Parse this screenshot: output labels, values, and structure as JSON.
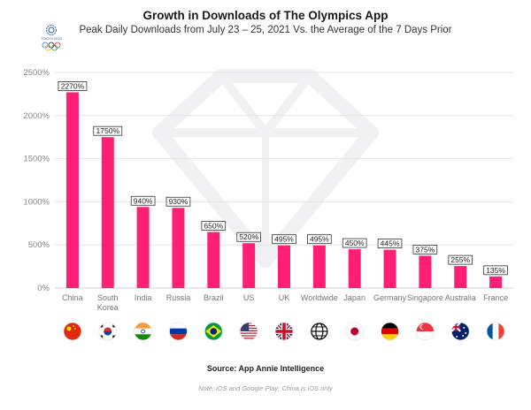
{
  "header": {
    "title": "Growth in Downloads of The Olympics App",
    "subtitle": "Peak Daily Downloads from July 23 – 25, 2021 Vs. the Average of the 7 Days Prior",
    "logo_text": "TOKYO 2020"
  },
  "footer": {
    "source": "Source: App Annie Intelligence",
    "note": "Note: iOS and Google Play; China is iOS only"
  },
  "chart_data": {
    "type": "bar",
    "title": "Growth in Downloads of The Olympics App",
    "subtitle": "Peak Daily Downloads from July 23 – 25, 2021 Vs. the Average of the 7 Days Prior",
    "categories": [
      "China",
      "South Korea",
      "India",
      "Russia",
      "Brazil",
      "US",
      "UK",
      "Worldwide",
      "Japan",
      "Germany",
      "Singapore",
      "Australia",
      "France"
    ],
    "category_lines": [
      [
        "China"
      ],
      [
        "South",
        "Korea"
      ],
      [
        "India"
      ],
      [
        "Russia"
      ],
      [
        "Brazil"
      ],
      [
        "US"
      ],
      [
        "UK"
      ],
      [
        "Worldwide"
      ],
      [
        "Japan"
      ],
      [
        "Germany"
      ],
      [
        "Singapore"
      ],
      [
        "Australia"
      ],
      [
        "France"
      ]
    ],
    "values": [
      2270,
      1750,
      940,
      930,
      650,
      520,
      495,
      495,
      450,
      445,
      375,
      255,
      135
    ],
    "data_labels": [
      "2270%",
      "1750%",
      "940%",
      "930%",
      "650%",
      "520%",
      "495%",
      "495%",
      "450%",
      "445%",
      "375%",
      "255%",
      "135%"
    ],
    "yticks": [
      0,
      500,
      1000,
      1500,
      2000,
      2500
    ],
    "ytick_labels": [
      "0%",
      "500%",
      "1000%",
      "1500%",
      "2000%",
      "2500%"
    ],
    "ylim": [
      0,
      2500
    ],
    "xlabel": "",
    "ylabel": "",
    "grid": true,
    "bar_color": "#ff1f75",
    "flags": [
      "china-flag-icon",
      "south-korea-flag-icon",
      "india-flag-icon",
      "russia-flag-icon",
      "brazil-flag-icon",
      "us-flag-icon",
      "uk-flag-icon",
      "globe-icon",
      "japan-flag-icon",
      "germany-flag-icon",
      "singapore-flag-icon",
      "australia-flag-icon",
      "france-flag-icon"
    ]
  }
}
